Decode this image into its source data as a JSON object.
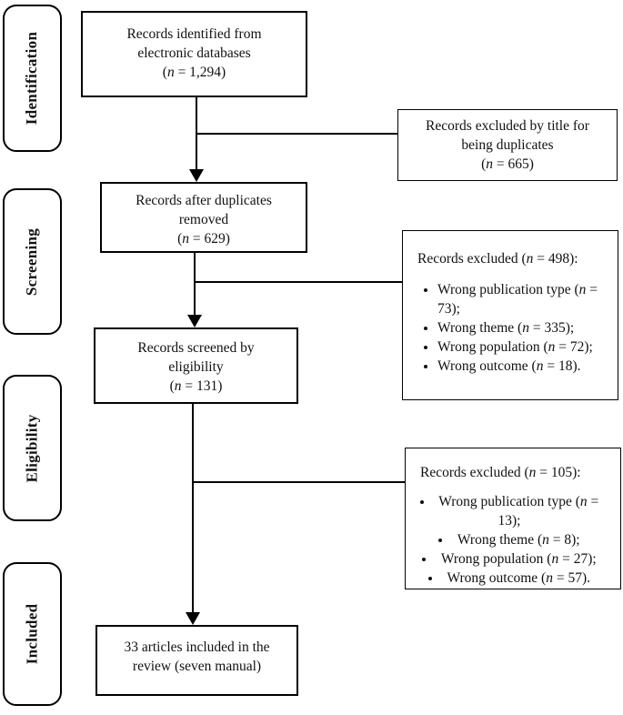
{
  "diagram": {
    "stages": [
      {
        "label": "Identification"
      },
      {
        "label": "Screening"
      },
      {
        "label": "Eligibility"
      },
      {
        "label": "Included"
      }
    ],
    "flow": [
      {
        "lines": [
          "Records identified from",
          "electronic databases",
          "(n = 1,294)"
        ]
      },
      {
        "lines": [
          "Records after duplicates",
          "removed",
          "(n = 629)"
        ]
      },
      {
        "lines": [
          "Records screened by",
          "eligibility",
          "(n = 131)"
        ]
      },
      {
        "lines": [
          "33 articles included in the",
          "review (seven manual)"
        ]
      }
    ],
    "excluded": [
      {
        "lines": [
          "Records excluded by title for",
          "being duplicates",
          "(n = 665)"
        ]
      },
      {
        "title": "Records excluded (n = 498):",
        "items": [
          "Wrong publication type (n = 73);",
          "Wrong theme (n = 335);",
          "Wrong population (n = 72);",
          "Wrong outcome (n = 18)."
        ]
      },
      {
        "title": "Records excluded (n = 105):",
        "items": [
          "Wrong publication type (n = 13);",
          "Wrong theme (n = 8);",
          "Wrong population (n = 27);",
          "Wrong outcome (n = 57)."
        ]
      }
    ],
    "colors": {
      "border": "#000000",
      "text": "#111111",
      "background": "#ffffff"
    }
  }
}
